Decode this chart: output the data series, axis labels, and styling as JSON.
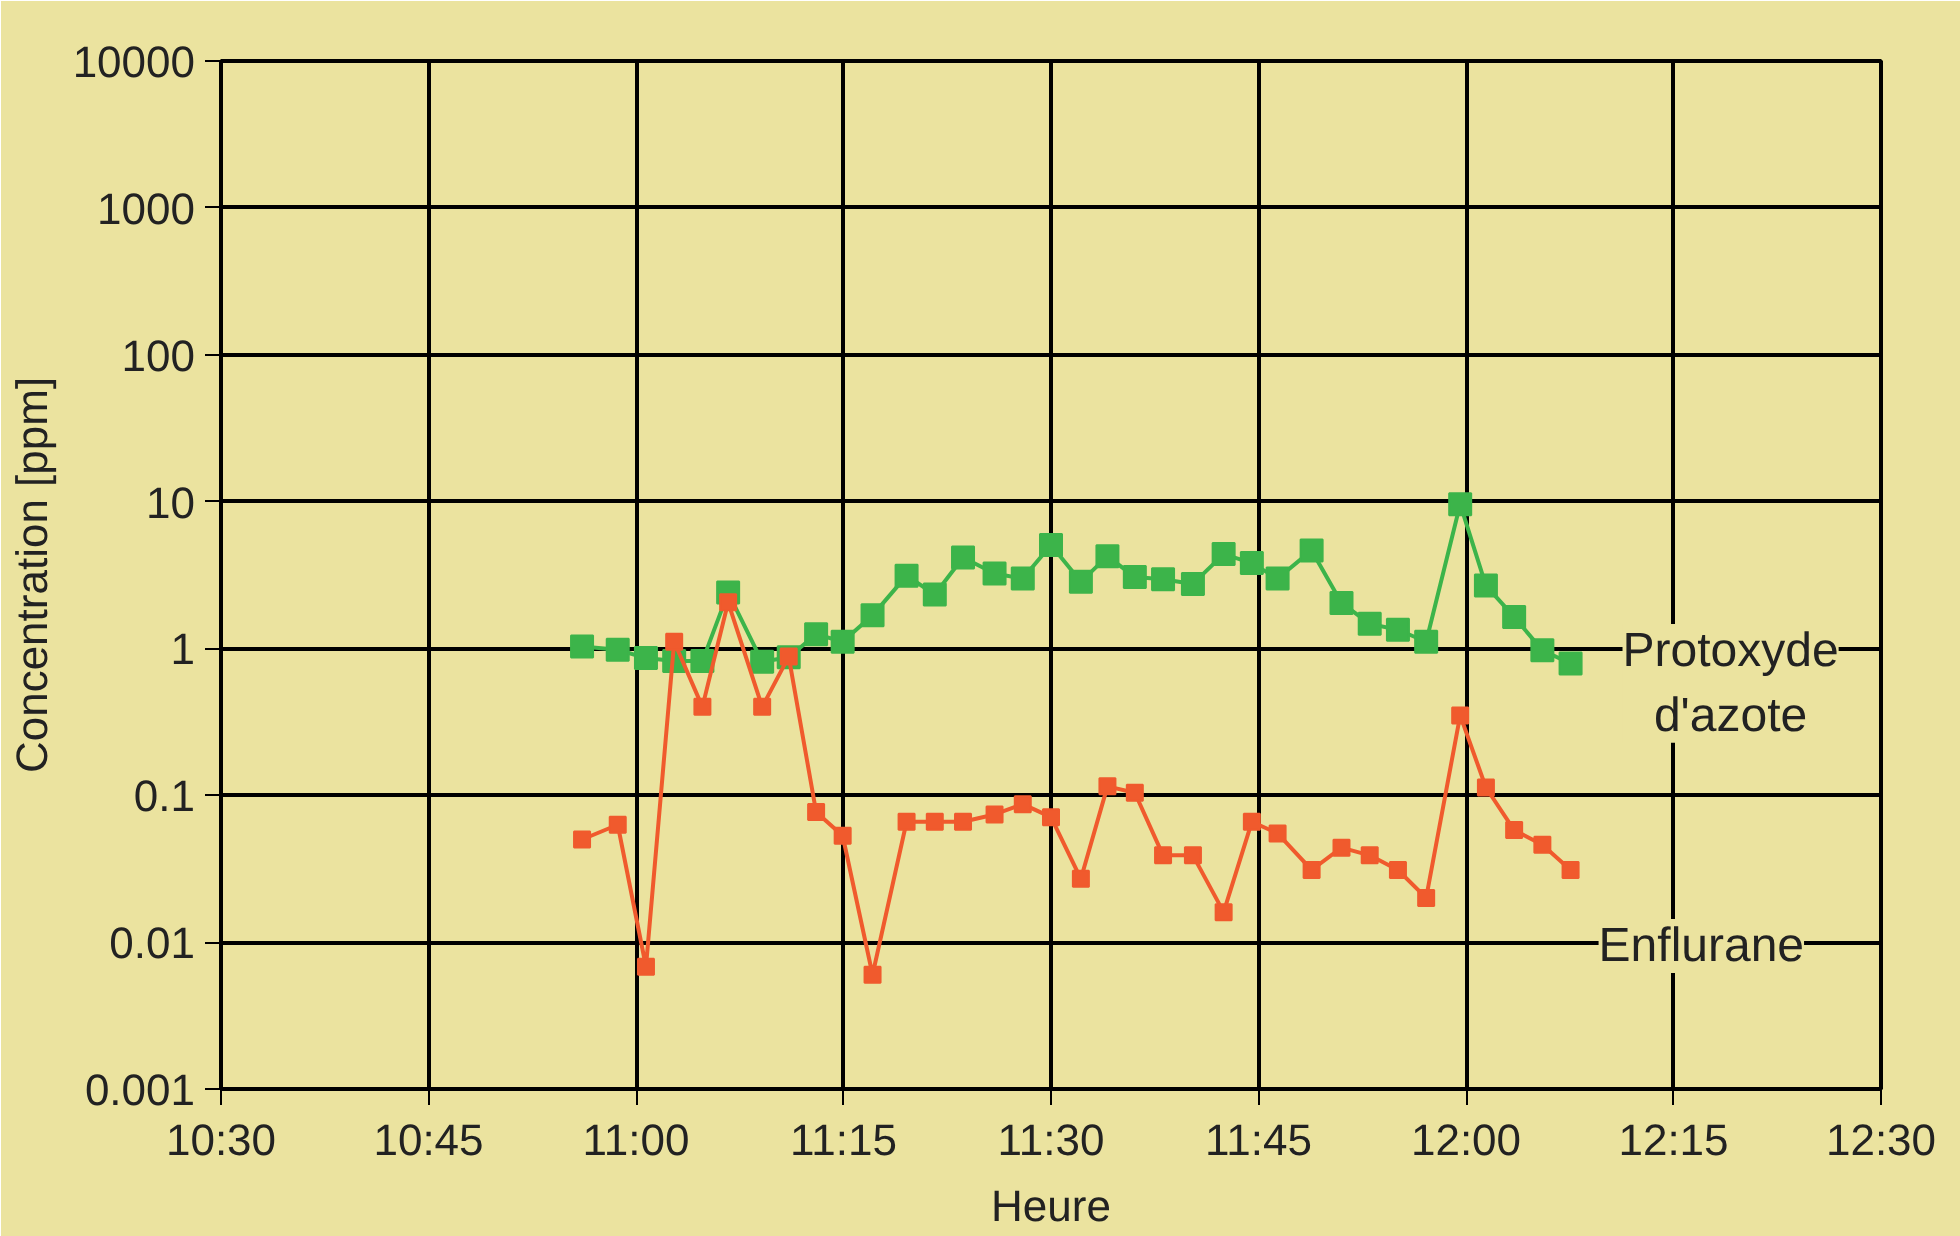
{
  "chart_data": {
    "type": "line",
    "xlabel": "Heure",
    "ylabel": "Concentration [ppm]",
    "log": "y",
    "grid": true,
    "marker": "square",
    "line_style": "solid",
    "legend": false,
    "x": [
      10.935,
      10.978,
      11.012,
      11.046,
      11.08,
      11.111,
      11.152,
      11.184,
      11.217,
      11.249,
      11.285,
      11.326,
      11.36,
      11.394,
      11.432,
      11.466,
      11.5,
      11.536,
      11.568,
      11.601,
      11.635,
      11.671,
      11.708,
      11.742,
      11.773,
      11.814,
      11.85,
      11.884,
      11.918,
      11.952,
      11.993,
      12.024,
      12.058,
      12.092,
      12.126
    ],
    "series": [
      {
        "name": "Protoxyde d'azote",
        "color": "#3cb44a",
        "values": [
          1.03,
          0.98,
          0.86,
          0.82,
          0.82,
          2.4,
          0.81,
          0.87,
          1.25,
          1.11,
          1.68,
          3.13,
          2.33,
          4.16,
          3.24,
          2.99,
          5.06,
          2.84,
          4.25,
          3.06,
          2.96,
          2.75,
          4.39,
          3.81,
          2.99,
          4.65,
          2.04,
          1.47,
          1.34,
          1.11,
          9.6,
          2.68,
          1.64,
          0.97,
          0.79
        ]
      },
      {
        "name": "Enflurane",
        "color": "#f05a2d",
        "values": [
          0.05,
          0.063,
          0.0068,
          1.11,
          0.4,
          2.06,
          0.4,
          0.88,
          0.077,
          0.053,
          0.006,
          0.066,
          0.066,
          0.066,
          0.074,
          0.087,
          0.071,
          0.027,
          0.115,
          0.104,
          0.039,
          0.039,
          0.016,
          0.066,
          0.055,
          0.031,
          0.044,
          0.039,
          0.031,
          0.02,
          0.35,
          0.113,
          0.058,
          0.046,
          0.031
        ]
      }
    ],
    "xlim": [
      10.5,
      12.5
    ],
    "xticks": [
      {
        "value": 10.5,
        "label": "10:30"
      },
      {
        "value": 10.75,
        "label": "10:45"
      },
      {
        "value": 11,
        "label": "11:00"
      },
      {
        "value": 11.25,
        "label": "11:15"
      },
      {
        "value": 11.5,
        "label": "11:30"
      },
      {
        "value": 11.75,
        "label": "11:45"
      },
      {
        "value": 12,
        "label": "12:00"
      },
      {
        "value": 12.25,
        "label": "12:15"
      },
      {
        "value": 12.5,
        "label": "12:30"
      }
    ],
    "ylim": [
      0.001,
      10000
    ],
    "yticks": [
      0.001,
      0.01,
      0.1,
      1,
      10,
      100,
      1000,
      10000
    ]
  }
}
